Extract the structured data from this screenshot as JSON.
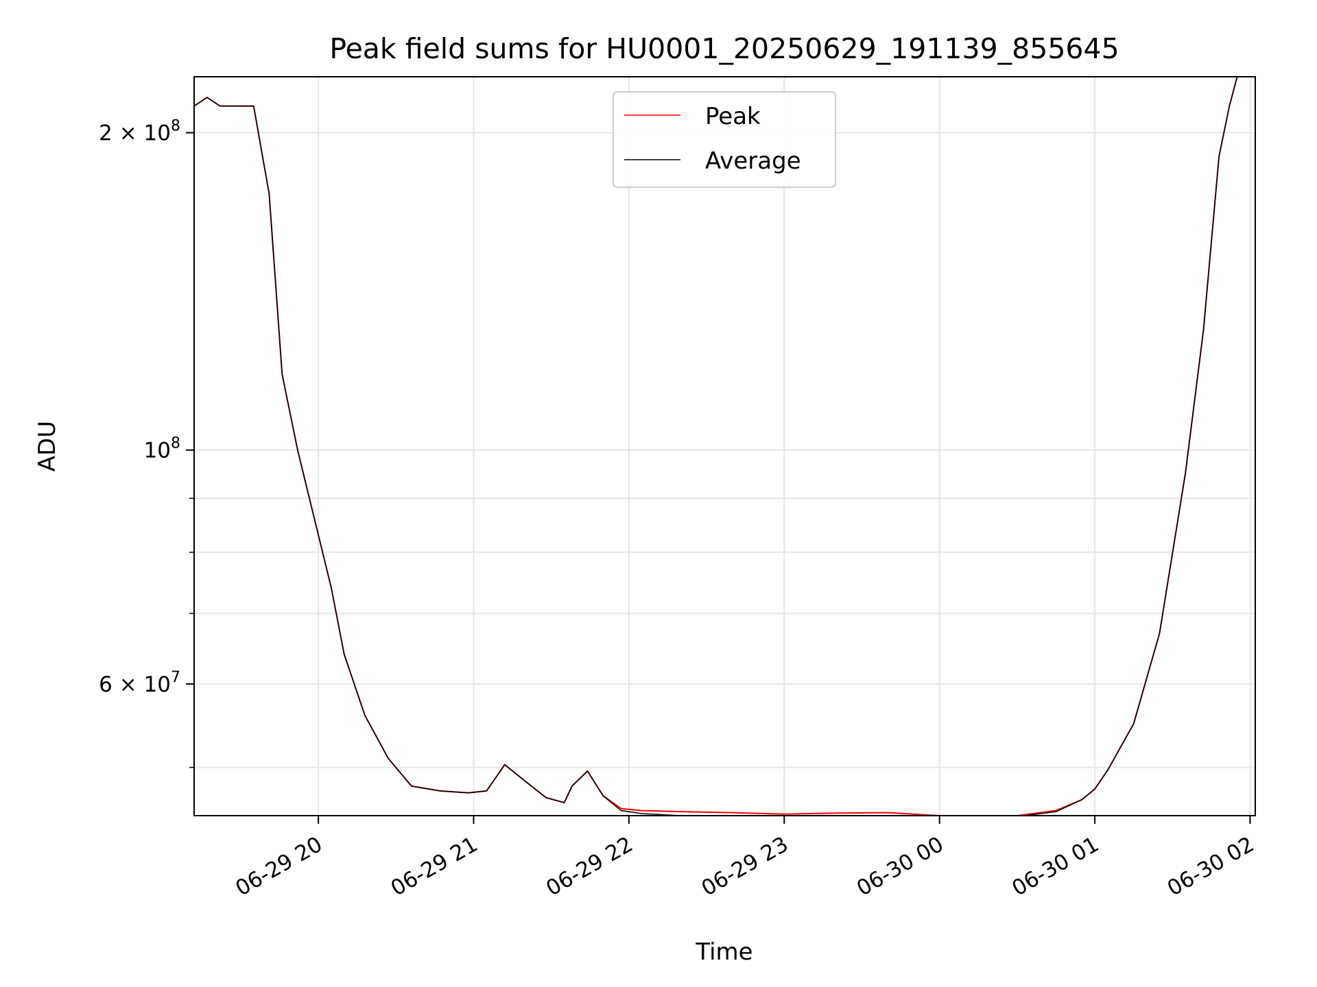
{
  "chart_data": {
    "type": "line",
    "title": "Peak field sums for HU0001_20250629_191139_855645",
    "xlabel": "Time",
    "ylabel": "ADU",
    "x_scale": "time",
    "y_scale": "log",
    "xlim": [
      "2025-06-29 19:12",
      "2025-06-30 02:02"
    ],
    "ylim": [
      45000000.0,
      226000000.0
    ],
    "grid": true,
    "legend": {
      "placement": "top-center"
    },
    "x_ticks": [
      {
        "value": "2025-06-29 20:00",
        "label": "06-29 20"
      },
      {
        "value": "2025-06-29 21:00",
        "label": "06-29 21"
      },
      {
        "value": "2025-06-29 22:00",
        "label": "06-29 22"
      },
      {
        "value": "2025-06-29 23:00",
        "label": "06-29 23"
      },
      {
        "value": "2025-06-30 00:00",
        "label": "06-30 00"
      },
      {
        "value": "2025-06-30 01:00",
        "label": "06-30 01"
      },
      {
        "value": "2025-06-30 02:00",
        "label": "06-30 02"
      }
    ],
    "y_major_ticks": [
      {
        "value": 200000000.0,
        "label": "2 × 10^8",
        "mantissa": "2 × 10",
        "exp": "8"
      },
      {
        "value": 100000000.0,
        "label": "10^8",
        "mantissa": "10",
        "exp": "8"
      },
      {
        "value": 60000000.0,
        "label": "6 × 10^7",
        "mantissa": "6 × 10",
        "exp": "7"
      }
    ],
    "y_minor_ticks": [
      50000000.0,
      70000000.0,
      80000000.0,
      90000000.0
    ],
    "series": [
      {
        "name": "Peak",
        "color": "#ff0000",
        "x": [
          "2025-06-29 19:12",
          "2025-06-29 19:17",
          "2025-06-29 19:22",
          "2025-06-29 19:35",
          "2025-06-29 19:41",
          "2025-06-29 19:46",
          "2025-06-29 19:52",
          "2025-06-29 19:58",
          "2025-06-29 20:05",
          "2025-06-29 20:10",
          "2025-06-29 20:18",
          "2025-06-29 20:27",
          "2025-06-29 20:36",
          "2025-06-29 20:47",
          "2025-06-29 20:58",
          "2025-06-29 21:05",
          "2025-06-29 21:12",
          "2025-06-29 21:20",
          "2025-06-29 21:28",
          "2025-06-29 21:35",
          "2025-06-29 21:38",
          "2025-06-29 21:44",
          "2025-06-29 21:50",
          "2025-06-29 21:57",
          "2025-06-29 22:05",
          "2025-06-29 22:20",
          "2025-06-29 22:40",
          "2025-06-29 23:00",
          "2025-06-29 23:20",
          "2025-06-29 23:40",
          "2025-06-30 00:00",
          "2025-06-30 00:15",
          "2025-06-30 00:30",
          "2025-06-30 00:45",
          "2025-06-30 00:55",
          "2025-06-30 01:00",
          "2025-06-30 01:05",
          "2025-06-30 01:15",
          "2025-06-30 01:25",
          "2025-06-30 01:35",
          "2025-06-30 01:42",
          "2025-06-30 01:48",
          "2025-06-30 01:52",
          "2025-06-30 01:55"
        ],
        "values": [
          212000000.0,
          216000000.0,
          212000000.0,
          212000000.0,
          175000000.0,
          118000000.0,
          100000000.0,
          87000000.0,
          74000000.0,
          64000000.0,
          56000000.0,
          51000000.0,
          48000000.0,
          47500000.0,
          47300000.0,
          47500000.0,
          50300000.0,
          48500000.0,
          46800000.0,
          46300000.0,
          48000000.0,
          49600000.0,
          47000000.0,
          45700000.0,
          45500000.0,
          45400000.0,
          45300000.0,
          45150000.0,
          45250000.0,
          45300000.0,
          45000000.0,
          44900000.0,
          45000000.0,
          45500000.0,
          46600000.0,
          47700000.0,
          49700000.0,
          55000000.0,
          67000000.0,
          95000000.0,
          130000000.0,
          190000000.0,
          212000000.0,
          226000000.0
        ]
      },
      {
        "name": "Average",
        "color": "#000000",
        "x": [
          "2025-06-29 19:12",
          "2025-06-29 19:17",
          "2025-06-29 19:22",
          "2025-06-29 19:35",
          "2025-06-29 19:41",
          "2025-06-29 19:46",
          "2025-06-29 19:52",
          "2025-06-29 19:58",
          "2025-06-29 20:05",
          "2025-06-29 20:10",
          "2025-06-29 20:18",
          "2025-06-29 20:27",
          "2025-06-29 20:36",
          "2025-06-29 20:47",
          "2025-06-29 20:58",
          "2025-06-29 21:05",
          "2025-06-29 21:12",
          "2025-06-29 21:20",
          "2025-06-29 21:28",
          "2025-06-29 21:35",
          "2025-06-29 21:38",
          "2025-06-29 21:44",
          "2025-06-29 21:50",
          "2025-06-29 21:57",
          "2025-06-29 22:05",
          "2025-06-29 22:20",
          "2025-06-29 22:40",
          "2025-06-29 23:00",
          "2025-06-29 23:20",
          "2025-06-29 23:40",
          "2025-06-30 00:00",
          "2025-06-30 00:15",
          "2025-06-30 00:30",
          "2025-06-30 00:45",
          "2025-06-30 00:55",
          "2025-06-30 01:00",
          "2025-06-30 01:05",
          "2025-06-30 01:15",
          "2025-06-30 01:25",
          "2025-06-30 01:35",
          "2025-06-30 01:42",
          "2025-06-30 01:48",
          "2025-06-30 01:52",
          "2025-06-30 01:55"
        ],
        "values": [
          212000000.0,
          216000000.0,
          212000000.0,
          212000000.0,
          175000000.0,
          118000000.0,
          100000000.0,
          87000000.0,
          74000000.0,
          64000000.0,
          56000000.0,
          51000000.0,
          48000000.0,
          47500000.0,
          47300000.0,
          47500000.0,
          50300000.0,
          48500000.0,
          46800000.0,
          46300000.0,
          48000000.0,
          49600000.0,
          47000000.0,
          45500000.0,
          45200000.0,
          45000000.0,
          44900000.0,
          44800000.0,
          44900000.0,
          45000000.0,
          44900000.0,
          44800000.0,
          44900000.0,
          45400000.0,
          46600000.0,
          47700000.0,
          49700000.0,
          55000000.0,
          67000000.0,
          95000000.0,
          130000000.0,
          190000000.0,
          212000000.0,
          226000000.0
        ]
      }
    ]
  }
}
